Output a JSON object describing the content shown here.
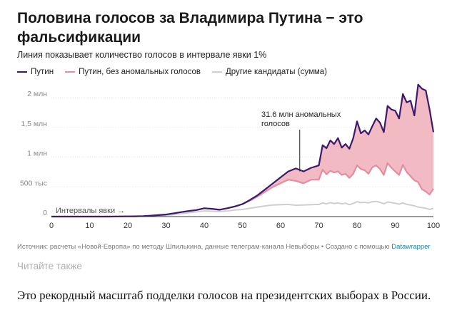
{
  "title": "Половина голосов за Владимира Путина − это фальсификации",
  "subtitle": "Линия показывает количество голосов в интервале явки 1%",
  "colors": {
    "putin": "#3b1a6e",
    "putin_clean": "#e48ca0",
    "fill": "#f1b3bd",
    "others": "#cfcfcf",
    "axis": "#333333",
    "grid": "#e6e6e6",
    "link": "#1d81a2"
  },
  "chart_data": {
    "type": "line",
    "xlabel": "Интервалы явки →",
    "ylabel": "",
    "xlim": [
      0,
      100
    ],
    "ylim": [
      0,
      2300000
    ],
    "x_ticks": [
      "0",
      "10",
      "20",
      "30",
      "40",
      "50",
      "60",
      "70",
      "80",
      "90",
      "100"
    ],
    "y_ticks": [
      {
        "value": 0,
        "label": "0"
      },
      {
        "value": 500000,
        "label": "500 тыс"
      },
      {
        "value": 1000000,
        "label": "1 млн"
      },
      {
        "value": 1500000,
        "label": "1,5 млн"
      },
      {
        "value": 2000000,
        "label": "2 млн"
      }
    ],
    "annotation": {
      "x": 65,
      "y": 760000,
      "text_lines": [
        "31.6 млн аномальных",
        "голосов"
      ]
    },
    "x": [
      0,
      5,
      10,
      15,
      20,
      22,
      24,
      26,
      28,
      30,
      32,
      34,
      36,
      38,
      40,
      42,
      44,
      46,
      48,
      50,
      52,
      54,
      56,
      58,
      60,
      62,
      64,
      66,
      68,
      70,
      71,
      72,
      73,
      74,
      75,
      76,
      77,
      78,
      79,
      80,
      81,
      82,
      83,
      84,
      85,
      86,
      87,
      88,
      89,
      90,
      91,
      92,
      93,
      94,
      95,
      96,
      97,
      98,
      99,
      100
    ],
    "series": [
      {
        "name": "Путин",
        "key": "putin",
        "values": [
          0,
          0,
          0,
          0,
          3000,
          5000,
          8000,
          15000,
          25000,
          35000,
          55000,
          75000,
          95000,
          110000,
          140000,
          130000,
          115000,
          140000,
          170000,
          210000,
          280000,
          360000,
          460000,
          560000,
          660000,
          760000,
          810000,
          760000,
          820000,
          860000,
          1200000,
          1150000,
          1280000,
          1220000,
          1320000,
          1160000,
          1220000,
          1140000,
          1320000,
          1600000,
          1400000,
          1450000,
          1380000,
          1520000,
          1650000,
          1580000,
          1420000,
          1860000,
          1800000,
          1780000,
          1650000,
          2060000,
          1920000,
          1950000,
          1700000,
          2220000,
          2150000,
          2120000,
          1800000,
          1420000
        ]
      },
      {
        "name": "Путин, без аномальных голосов",
        "key": "putin_clean",
        "values": [
          0,
          0,
          0,
          0,
          3000,
          5000,
          8000,
          15000,
          25000,
          35000,
          55000,
          75000,
          95000,
          110000,
          140000,
          130000,
          115000,
          140000,
          170000,
          210000,
          270000,
          340000,
          420000,
          500000,
          560000,
          620000,
          600000,
          560000,
          620000,
          620000,
          790000,
          710000,
          770000,
          740000,
          760000,
          700000,
          720000,
          650000,
          720000,
          860000,
          800000,
          780000,
          720000,
          830000,
          860000,
          800000,
          700000,
          900000,
          820000,
          760000,
          700000,
          870000,
          750000,
          680000,
          610000,
          580000,
          460000,
          420000,
          370000,
          470000
        ]
      },
      {
        "name": "Другие кандидаты (сумма)",
        "key": "others",
        "values": [
          0,
          0,
          0,
          0,
          1000,
          2000,
          4000,
          8000,
          14000,
          20000,
          35000,
          50000,
          65000,
          80000,
          95000,
          90000,
          85000,
          95000,
          110000,
          120000,
          140000,
          160000,
          180000,
          195000,
          200000,
          205000,
          190000,
          195000,
          200000,
          205000,
          230000,
          215000,
          235000,
          220000,
          230000,
          215000,
          225000,
          200000,
          220000,
          250000,
          235000,
          240000,
          230000,
          250000,
          255000,
          240000,
          215000,
          245000,
          235000,
          225000,
          210000,
          230000,
          205000,
          195000,
          180000,
          160000,
          150000,
          140000,
          120000,
          140000
        ]
      }
    ]
  },
  "source": {
    "text": "Источник: расчеты «Новой-Европа» по методу Шпилькина, данные телеграм-канала Невыборы • Создано с помощью",
    "link": "Datawrapper"
  },
  "see_also": "Читайте также",
  "body_text": "Это рекордный масштаб подделки голосов на президентских выборах в России."
}
